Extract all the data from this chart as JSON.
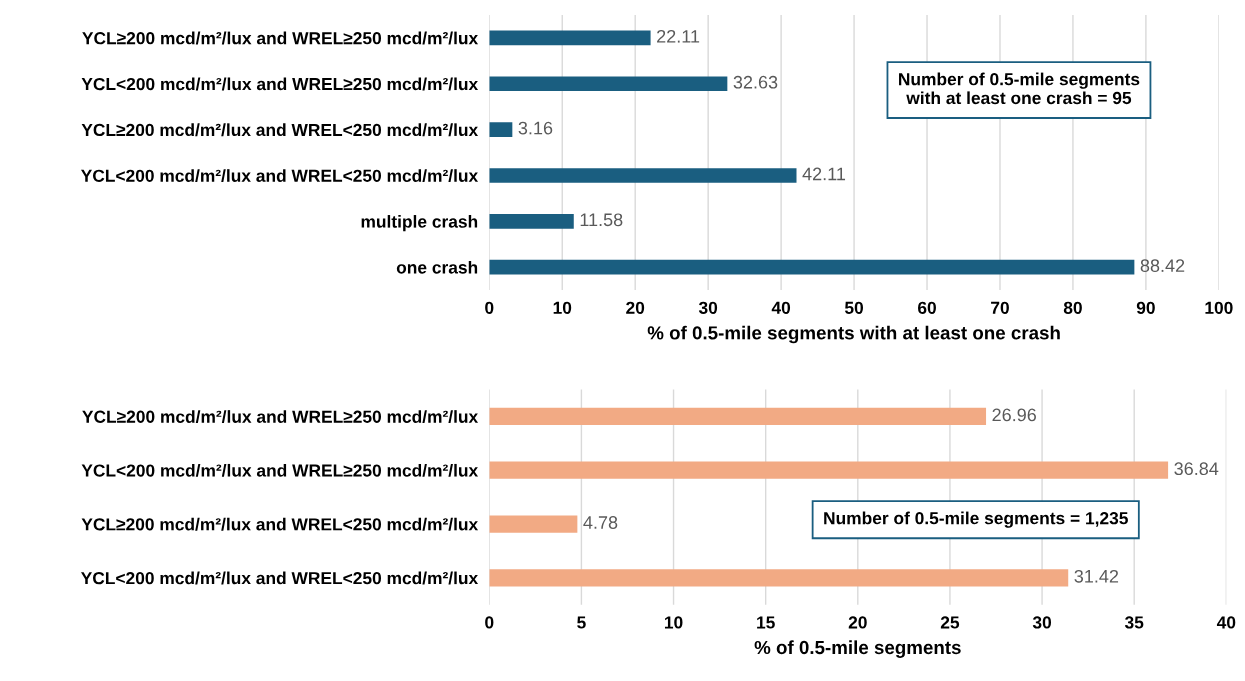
{
  "chart_data": [
    {
      "type": "bar",
      "orientation": "horizontal",
      "categories": [
        "YCL≥200 mcd/m²/lux and WREL≥250 mcd/m²/lux",
        "YCL<200 mcd/m²/lux and WREL≥250 mcd/m²/lux",
        "YCL≥200 mcd/m²/lux and WREL<250 mcd/m²/lux",
        "YCL<200 mcd/m²/lux and WREL<250 mcd/m²/lux",
        "multiple crash",
        "one crash"
      ],
      "values": [
        22.11,
        32.63,
        3.16,
        42.11,
        11.58,
        88.42
      ],
      "color": "#1a5e80",
      "data_labels": true,
      "xlim": [
        0,
        100
      ],
      "xticks": [
        0,
        10,
        20,
        30,
        40,
        50,
        60,
        70,
        80,
        90,
        100
      ],
      "grid": "x",
      "xlabel": "% of 0.5-mile segments with at least one crash",
      "annotations": [
        "Number of 0.5-mile segments\nwith at least one crash = 95"
      ]
    },
    {
      "type": "bar",
      "orientation": "horizontal",
      "categories": [
        "YCL≥200 mcd/m²/lux and WREL≥250 mcd/m²/lux",
        "YCL<200 mcd/m²/lux and WREL≥250 mcd/m²/lux",
        "YCL≥200 mcd/m²/lux and WREL<250 mcd/m²/lux",
        "YCL<200 mcd/m²/lux and WREL<250 mcd/m²/lux"
      ],
      "values": [
        26.96,
        36.84,
        4.78,
        31.42
      ],
      "color": "#f2aa84",
      "data_labels": true,
      "xlim": [
        0,
        40
      ],
      "xticks": [
        0,
        5,
        10,
        15,
        20,
        25,
        30,
        35,
        40
      ],
      "grid": "x",
      "xlabel": "% of 0.5-mile segments",
      "annotations": [
        "Number of 0.5-mile segments = 1,235"
      ]
    }
  ]
}
